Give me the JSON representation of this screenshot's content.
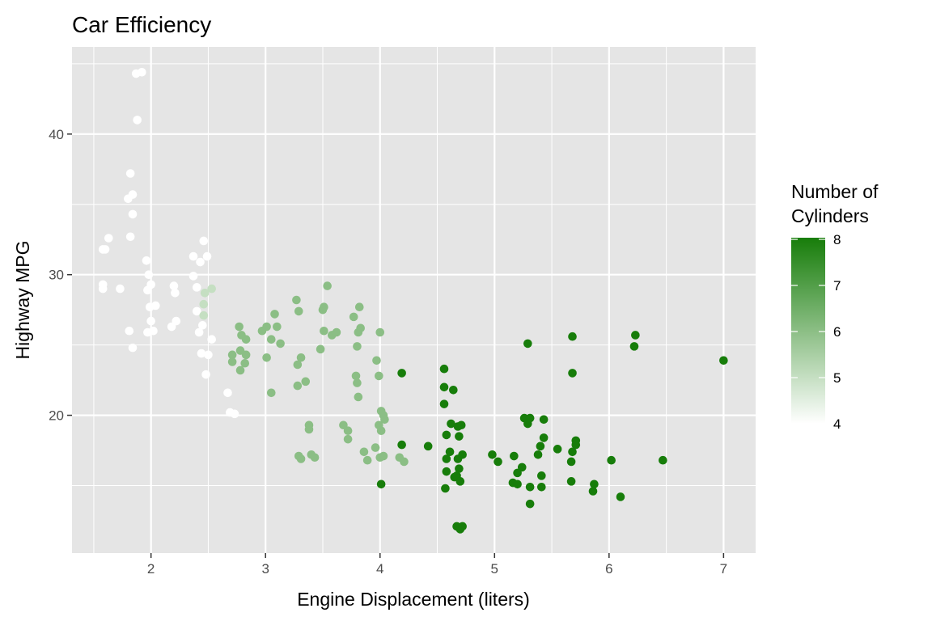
{
  "chart_data": {
    "type": "scatter",
    "title": "Car Efficiency",
    "xlabel": "Engine Displacement (liters)",
    "ylabel": "Highway MPG",
    "xlim": [
      1.31,
      7.28
    ],
    "ylim": [
      10.2,
      46.2
    ],
    "xticks": [
      2,
      3,
      4,
      5,
      6,
      7
    ],
    "yticks": [
      20,
      30,
      40
    ],
    "grid": true,
    "legend": {
      "title_line1": "Number of",
      "title_line2": "Cylinders",
      "placement": "right",
      "ticks": [
        4,
        5,
        6,
        7,
        8
      ],
      "range": [
        4,
        8
      ],
      "low_color": "#ffffff",
      "high_color": "#177d0a"
    },
    "colors": {
      "panel": "#e5e5e5",
      "grid": "#ffffff"
    },
    "points_format": [
      "displ",
      "hwy",
      "cyl"
    ],
    "points": [
      [
        1.58,
        29.3,
        4
      ],
      [
        1.58,
        31.8,
        4
      ],
      [
        1.6,
        31.8,
        4
      ],
      [
        1.63,
        32.6,
        4
      ],
      [
        1.82,
        32.7,
        4
      ],
      [
        1.84,
        34.3,
        4
      ],
      [
        1.8,
        35.4,
        4
      ],
      [
        1.84,
        35.7,
        4
      ],
      [
        1.82,
        37.2,
        4
      ],
      [
        1.88,
        41.0,
        4
      ],
      [
        1.87,
        44.3,
        4
      ],
      [
        1.92,
        44.4,
        4
      ],
      [
        1.96,
        31.0,
        4
      ],
      [
        1.98,
        30.0,
        4
      ],
      [
        1.81,
        26.0,
        4
      ],
      [
        1.84,
        24.8,
        4
      ],
      [
        1.97,
        25.9,
        4
      ],
      [
        2.02,
        26.0,
        4
      ],
      [
        2.0,
        26.7,
        4
      ],
      [
        1.99,
        27.7,
        4
      ],
      [
        2.04,
        27.8,
        4
      ],
      [
        2.2,
        29.2,
        4
      ],
      [
        2.21,
        28.7,
        4
      ],
      [
        2.18,
        26.3,
        4
      ],
      [
        2.22,
        26.7,
        4
      ],
      [
        2.37,
        31.3,
        4
      ],
      [
        2.46,
        32.4,
        4
      ],
      [
        2.49,
        31.3,
        4
      ],
      [
        2.43,
        30.9,
        4
      ],
      [
        2.37,
        29.9,
        4
      ],
      [
        2.4,
        29.1,
        4
      ],
      [
        2.4,
        27.4,
        4
      ],
      [
        2.45,
        26.4,
        4
      ],
      [
        2.42,
        25.9,
        4
      ],
      [
        2.44,
        24.4,
        4
      ],
      [
        2.5,
        24.3,
        4
      ],
      [
        2.48,
        22.9,
        4
      ],
      [
        2.53,
        25.4,
        4
      ],
      [
        2.67,
        21.6,
        4
      ],
      [
        2.69,
        20.2,
        4
      ],
      [
        2.73,
        20.1,
        4
      ],
      [
        1.97,
        28.9,
        4
      ],
      [
        2.0,
        29.3,
        4
      ],
      [
        1.58,
        29.0,
        4
      ],
      [
        1.73,
        29.0,
        4
      ],
      [
        2.47,
        28.7,
        5
      ],
      [
        2.53,
        29.0,
        5
      ],
      [
        2.46,
        27.9,
        5
      ],
      [
        2.46,
        27.1,
        5
      ],
      [
        2.77,
        26.3,
        6
      ],
      [
        2.79,
        25.7,
        6
      ],
      [
        2.83,
        25.4,
        6
      ],
      [
        2.78,
        24.6,
        6
      ],
      [
        2.71,
        24.3,
        6
      ],
      [
        2.71,
        23.8,
        6
      ],
      [
        2.78,
        23.2,
        6
      ],
      [
        2.83,
        24.3,
        6
      ],
      [
        2.82,
        23.7,
        6
      ],
      [
        2.97,
        26.0,
        6
      ],
      [
        3.01,
        26.3,
        6
      ],
      [
        3.05,
        25.4,
        6
      ],
      [
        3.08,
        27.2,
        6
      ],
      [
        3.1,
        26.3,
        6
      ],
      [
        3.13,
        25.1,
        6
      ],
      [
        3.01,
        24.1,
        6
      ],
      [
        3.05,
        21.6,
        6
      ],
      [
        3.27,
        28.2,
        6
      ],
      [
        3.29,
        27.4,
        6
      ],
      [
        3.31,
        24.1,
        6
      ],
      [
        3.28,
        23.6,
        6
      ],
      [
        3.35,
        22.4,
        6
      ],
      [
        3.28,
        22.1,
        6
      ],
      [
        3.38,
        19.3,
        6
      ],
      [
        3.38,
        19.0,
        6
      ],
      [
        3.29,
        17.1,
        6
      ],
      [
        3.31,
        16.9,
        6
      ],
      [
        3.4,
        17.2,
        6
      ],
      [
        3.43,
        17.0,
        6
      ],
      [
        3.48,
        24.7,
        6
      ],
      [
        3.5,
        27.5,
        6
      ],
      [
        3.51,
        27.7,
        6
      ],
      [
        3.54,
        29.2,
        6
      ],
      [
        3.51,
        26.0,
        6
      ],
      [
        3.58,
        25.7,
        6
      ],
      [
        3.62,
        25.9,
        6
      ],
      [
        3.68,
        19.3,
        6
      ],
      [
        3.72,
        18.9,
        6
      ],
      [
        3.72,
        18.3,
        6
      ],
      [
        3.77,
        27.0,
        6
      ],
      [
        3.82,
        27.7,
        6
      ],
      [
        3.81,
        25.9,
        6
      ],
      [
        3.83,
        26.2,
        6
      ],
      [
        3.8,
        24.9,
        6
      ],
      [
        3.79,
        22.8,
        6
      ],
      [
        3.8,
        22.3,
        6
      ],
      [
        3.81,
        21.3,
        6
      ],
      [
        3.86,
        17.4,
        6
      ],
      [
        3.89,
        16.8,
        6
      ],
      [
        3.96,
        17.7,
        6
      ],
      [
        3.99,
        19.3,
        6
      ],
      [
        4.0,
        25.9,
        6
      ],
      [
        3.97,
        23.9,
        6
      ],
      [
        3.99,
        22.8,
        6
      ],
      [
        4.01,
        20.3,
        6
      ],
      [
        4.03,
        20.0,
        6
      ],
      [
        4.01,
        18.9,
        6
      ],
      [
        4.0,
        17.0,
        6
      ],
      [
        4.03,
        17.1,
        6
      ],
      [
        4.17,
        17.0,
        6
      ],
      [
        4.21,
        16.7,
        6
      ],
      [
        4.04,
        19.7,
        6
      ],
      [
        4.19,
        23.0,
        8
      ],
      [
        4.19,
        17.9,
        8
      ],
      [
        4.01,
        15.1,
        8
      ],
      [
        4.42,
        17.8,
        8
      ],
      [
        4.56,
        23.3,
        8
      ],
      [
        4.56,
        22.0,
        8
      ],
      [
        4.56,
        20.8,
        8
      ],
      [
        4.64,
        21.8,
        8
      ],
      [
        4.58,
        18.6,
        8
      ],
      [
        4.58,
        16.9,
        8
      ],
      [
        4.58,
        16.0,
        8
      ],
      [
        4.57,
        14.8,
        8
      ],
      [
        4.61,
        17.4,
        8
      ],
      [
        4.62,
        19.4,
        8
      ],
      [
        4.65,
        15.6,
        8
      ],
      [
        4.68,
        19.2,
        8
      ],
      [
        4.69,
        18.5,
        8
      ],
      [
        4.71,
        19.3,
        8
      ],
      [
        4.68,
        16.9,
        8
      ],
      [
        4.69,
        16.2,
        8
      ],
      [
        4.67,
        15.7,
        8
      ],
      [
        4.7,
        15.3,
        8
      ],
      [
        4.67,
        12.1,
        8
      ],
      [
        4.7,
        11.9,
        8
      ],
      [
        4.72,
        12.1,
        8
      ],
      [
        4.72,
        17.2,
        8
      ],
      [
        4.98,
        17.2,
        8
      ],
      [
        5.03,
        16.7,
        8
      ],
      [
        5.17,
        17.1,
        8
      ],
      [
        5.29,
        25.1,
        8
      ],
      [
        5.26,
        19.8,
        8
      ],
      [
        5.29,
        19.4,
        8
      ],
      [
        5.31,
        19.8,
        8
      ],
      [
        5.43,
        19.7,
        8
      ],
      [
        5.43,
        18.4,
        8
      ],
      [
        5.4,
        17.8,
        8
      ],
      [
        5.38,
        17.2,
        8
      ],
      [
        5.24,
        16.3,
        8
      ],
      [
        5.2,
        15.9,
        8
      ],
      [
        5.16,
        15.2,
        8
      ],
      [
        5.2,
        15.1,
        8
      ],
      [
        5.31,
        14.9,
        8
      ],
      [
        5.41,
        14.9,
        8
      ],
      [
        5.41,
        15.7,
        8
      ],
      [
        5.31,
        13.7,
        8
      ],
      [
        5.55,
        17.6,
        8
      ],
      [
        5.68,
        25.6,
        8
      ],
      [
        5.68,
        23.0,
        8
      ],
      [
        5.71,
        18.2,
        8
      ],
      [
        5.71,
        17.9,
        8
      ],
      [
        5.68,
        17.4,
        8
      ],
      [
        5.67,
        16.7,
        8
      ],
      [
        5.67,
        15.3,
        8
      ],
      [
        5.87,
        15.1,
        8
      ],
      [
        5.86,
        14.6,
        8
      ],
      [
        6.02,
        16.8,
        8
      ],
      [
        6.1,
        14.2,
        8
      ],
      [
        6.23,
        25.7,
        8
      ],
      [
        6.22,
        24.9,
        8
      ],
      [
        6.47,
        16.8,
        8
      ],
      [
        7.0,
        23.9,
        8
      ]
    ]
  }
}
